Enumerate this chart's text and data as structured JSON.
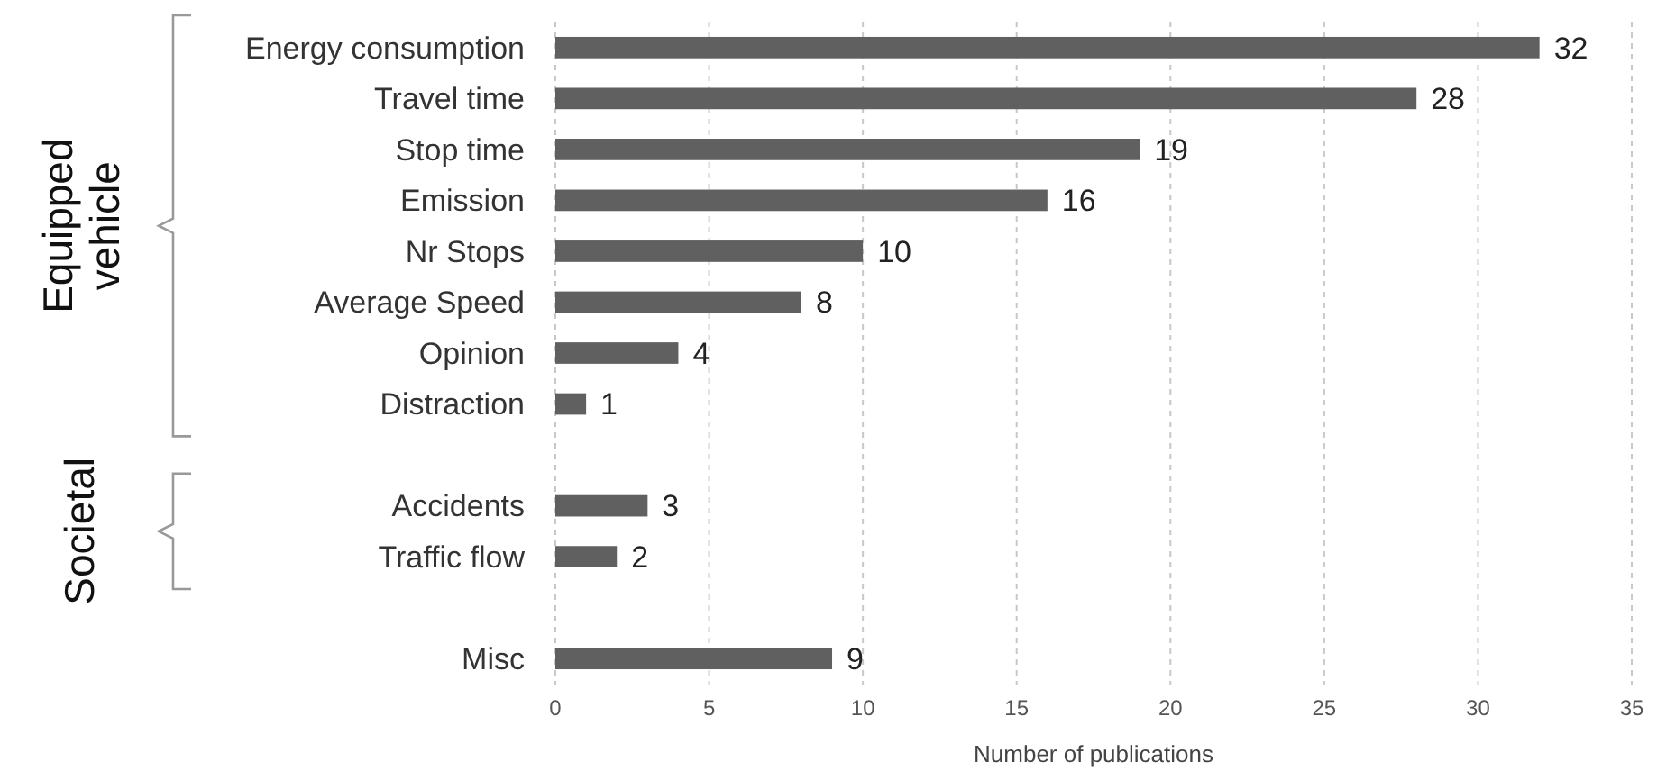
{
  "chart_data": {
    "type": "bar",
    "orientation": "horizontal",
    "xlabel": "Number of publications",
    "categories": [
      "Energy consumption",
      "Travel time",
      "Stop time",
      "Emission",
      "Nr Stops",
      "Average Speed",
      "Opinion",
      "Distraction",
      null,
      "Accidents",
      "Traffic flow",
      null,
      "Misc"
    ],
    "values": [
      32,
      28,
      19,
      16,
      10,
      8,
      4,
      1,
      null,
      3,
      2,
      null,
      9
    ],
    "color": "#606060",
    "xlim": [
      0,
      35
    ],
    "xticks": [
      0,
      5,
      10,
      15,
      20,
      25,
      30,
      35
    ],
    "grid": "x",
    "data_labels": true,
    "annotations": [
      "Equipped vehicle",
      "Societal"
    ]
  }
}
